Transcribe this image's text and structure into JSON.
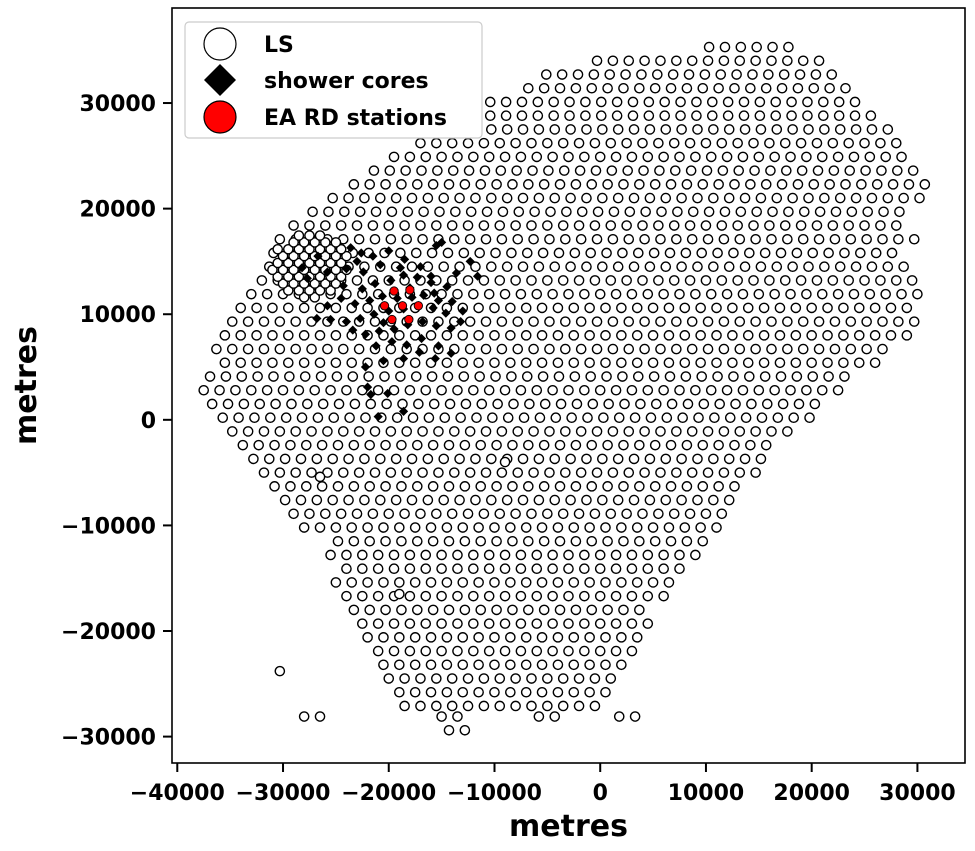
{
  "chart_data": {
    "type": "scatter",
    "title": "",
    "xlabel": "metres",
    "ylabel": "metres",
    "xlim": [
      -40500,
      34500
    ],
    "ylim": [
      -32500,
      39000
    ],
    "xticks": [
      -40000,
      -30000,
      -20000,
      -10000,
      0,
      10000,
      20000,
      30000
    ],
    "xtick_labels": [
      "−40000",
      "−30000",
      "−20000",
      "−10000",
      "0",
      "10000",
      "20000",
      "30000"
    ],
    "yticks": [
      -30000,
      -20000,
      -10000,
      0,
      10000,
      20000,
      30000
    ],
    "ytick_labels": [
      "−30000",
      "−20000",
      "−10000",
      "0",
      "10000",
      "20000",
      "30000"
    ],
    "grid": false,
    "legend": {
      "placement": "top-left",
      "entries": [
        "LS",
        "shower cores",
        "EA RD stations"
      ]
    },
    "layout_grid": {
      "dx": 1500,
      "dy": 1299,
      "note_rows": "hexagonal, odd rows offset by half spacing"
    },
    "series": [
      {
        "name": "LS",
        "marker": "open-circle",
        "color": "#000000",
        "fill": "#ffffff",
        "row_ranges": [
          {
            "y": 35300,
            "x": [
              10300,
              17800
            ]
          },
          {
            "y": 34000,
            "x": [
              -300,
              20800
            ]
          },
          {
            "y": 32700,
            "x": [
              -5100,
              22200
            ]
          },
          {
            "y": 31400,
            "x": [
              -6800,
              23700
            ]
          },
          {
            "y": 30100,
            "x": [
              -10400,
              25200
            ]
          },
          {
            "y": 28800,
            "x": [
              -13400,
              26700
            ]
          },
          {
            "y": 27500,
            "x": [
              -14800,
              28200
            ]
          },
          {
            "y": 26200,
            "x": [
              -17000,
              29000
            ]
          },
          {
            "y": 24900,
            "x": [
              -19500,
              29700
            ]
          },
          {
            "y": 23600,
            "x": [
              -21400,
              30400
            ]
          },
          {
            "y": 22300,
            "x": [
              -23300,
              31200
            ]
          },
          {
            "y": 21000,
            "x": [
              -25300,
              30400
            ]
          },
          {
            "y": 19700,
            "x": [
              -27200,
              29700
            ]
          },
          {
            "y": 18400,
            "x": [
              -29000,
              29000
            ]
          },
          {
            "y": 17100,
            "x": [
              -30300,
              29700
            ]
          },
          {
            "y": 15800,
            "x": [
              -30900,
              29000
            ]
          },
          {
            "y": 14500,
            "x": [
              -31300,
              29700
            ]
          },
          {
            "y": 13200,
            "x": [
              -32000,
              30400
            ]
          },
          {
            "y": 11900,
            "x": [
              -33000,
              31200
            ]
          },
          {
            "y": 10600,
            "x": [
              -34000,
              30400
            ]
          },
          {
            "y": 9300,
            "x": [
              -34800,
              29700
            ]
          },
          {
            "y": 8000,
            "x": [
              -35500,
              29000
            ]
          },
          {
            "y": 6700,
            "x": [
              -36300,
              27500
            ]
          },
          {
            "y": 5400,
            "x": [
              -35500,
              26000
            ]
          },
          {
            "y": 4100,
            "x": [
              -36900,
              24500
            ]
          },
          {
            "y": 2800,
            "x": [
              -37500,
              23000
            ]
          },
          {
            "y": 1500,
            "x": [
              -36700,
              21500
            ]
          },
          {
            "y": 200,
            "x": [
              -35700,
              20000
            ]
          },
          {
            "y": -1100,
            "x": [
              -34800,
              18500
            ]
          },
          {
            "y": -2400,
            "x": [
              -33800,
              17000
            ]
          },
          {
            "y": -3700,
            "x": [
              -32800,
              16000
            ]
          },
          {
            "y": -5000,
            "x": [
              -31800,
              15000
            ]
          },
          {
            "y": -6300,
            "x": [
              -30800,
              14000
            ]
          },
          {
            "y": -7600,
            "x": [
              -29800,
              13000
            ]
          },
          {
            "y": -8900,
            "x": [
              -29000,
              12000
            ]
          },
          {
            "y": -10200,
            "x": [
              -28000,
              11000
            ]
          },
          {
            "y": -11500,
            "x": [
              -24800,
              10000
            ]
          },
          {
            "y": -12800,
            "x": [
              -25500,
              9000
            ]
          },
          {
            "y": -14100,
            "x": [
              -24000,
              8000
            ]
          },
          {
            "y": -15400,
            "x": [
              -25000,
              7000
            ]
          },
          {
            "y": -16700,
            "x": [
              -24000,
              6000
            ]
          },
          {
            "y": -18000,
            "x": [
              -23300,
              5000
            ]
          },
          {
            "y": -19300,
            "x": [
              -22500,
              4500
            ]
          },
          {
            "y": -20600,
            "x": [
              -22000,
              4000
            ]
          },
          {
            "y": -21900,
            "x": [
              -21000,
              3500
            ]
          },
          {
            "y": -23200,
            "x": [
              -20500,
              2800
            ]
          },
          {
            "y": -24500,
            "x": [
              -20000,
              1800
            ]
          },
          {
            "y": -25800,
            "x": [
              -19000,
              1000
            ]
          },
          {
            "y": -27100,
            "x": [
              -18500,
              0
            ]
          }
        ],
        "extra_points": [
          {
            "x": -30300,
            "y": -23800
          },
          {
            "x": -28000,
            "y": -28100
          },
          {
            "x": -26500,
            "y": -28100
          },
          {
            "x": -15000,
            "y": -28100
          },
          {
            "x": -13500,
            "y": -28100
          },
          {
            "x": -5800,
            "y": -28100
          },
          {
            "x": -4300,
            "y": -28100
          },
          {
            "x": 1800,
            "y": -28100
          },
          {
            "x": 3300,
            "y": -28100
          },
          {
            "x": -14300,
            "y": -29400
          },
          {
            "x": -12800,
            "y": -29400
          },
          {
            "x": -26500,
            "y": -5400
          },
          {
            "x": -19000,
            "y": -16500
          },
          {
            "x": -9000,
            "y": -4000
          }
        ],
        "dense_cluster": {
          "center": [
            -27500,
            14800
          ],
          "x_range": [
            -31000,
            -23800
          ],
          "y_range": [
            11600,
            17600
          ],
          "spacing": 500
        }
      },
      {
        "name": "shower cores",
        "marker": "diamond",
        "color": "#000000",
        "points": [
          [
            -23000,
            15000
          ],
          [
            -21500,
            15500
          ],
          [
            -20000,
            16000
          ],
          [
            -18500,
            15200
          ],
          [
            -17000,
            14500
          ],
          [
            -15500,
            16500
          ],
          [
            -15000,
            16800
          ],
          [
            -12300,
            15000
          ],
          [
            -13600,
            13900
          ],
          [
            -11600,
            13600
          ],
          [
            -20800,
            14700
          ],
          [
            -22400,
            14000
          ],
          [
            -24000,
            14300
          ],
          [
            -25800,
            14000
          ],
          [
            -27700,
            13400
          ],
          [
            -28200,
            14400
          ],
          [
            -24300,
            12700
          ],
          [
            -22500,
            12400
          ],
          [
            -21300,
            12900
          ],
          [
            -19800,
            13200
          ],
          [
            -18600,
            13700
          ],
          [
            -17300,
            13500
          ],
          [
            -16000,
            13000
          ],
          [
            -14500,
            12600
          ],
          [
            -15700,
            12000
          ],
          [
            -16700,
            11800
          ],
          [
            -17800,
            11600
          ],
          [
            -19200,
            11500
          ],
          [
            -20600,
            11700
          ],
          [
            -21800,
            11300
          ],
          [
            -23200,
            11000
          ],
          [
            -24500,
            11500
          ],
          [
            -25800,
            10800
          ],
          [
            -26800,
            9600
          ],
          [
            -25500,
            9500
          ],
          [
            -24000,
            9300
          ],
          [
            -22700,
            9600
          ],
          [
            -21400,
            10000
          ],
          [
            -20000,
            10300
          ],
          [
            -18600,
            10500
          ],
          [
            -17200,
            10800
          ],
          [
            -15800,
            10600
          ],
          [
            -14600,
            10100
          ],
          [
            -13200,
            9300
          ],
          [
            -14100,
            8700
          ],
          [
            -15500,
            8900
          ],
          [
            -16800,
            9300
          ],
          [
            -18200,
            9000
          ],
          [
            -19500,
            8600
          ],
          [
            -20900,
            8400
          ],
          [
            -22200,
            8100
          ],
          [
            -23400,
            8500
          ],
          [
            -21200,
            7000
          ],
          [
            -19700,
            7400
          ],
          [
            -18300,
            7100
          ],
          [
            -16900,
            7700
          ],
          [
            -15300,
            7000
          ],
          [
            -14100,
            6300
          ],
          [
            -15600,
            5800
          ],
          [
            -17100,
            6400
          ],
          [
            -18600,
            5800
          ],
          [
            -20500,
            5600
          ],
          [
            -22200,
            5000
          ],
          [
            -21700,
            2400
          ],
          [
            -22000,
            3100
          ],
          [
            -20100,
            2500
          ],
          [
            -21000,
            300
          ],
          [
            -18600,
            800
          ],
          [
            -16000,
            13600
          ],
          [
            -18900,
            14400
          ],
          [
            -22600,
            15800
          ],
          [
            -23600,
            16300
          ],
          [
            -15300,
            11300
          ],
          [
            -14000,
            11200
          ],
          [
            -26700,
            15500
          ],
          [
            -18000,
            12500
          ],
          [
            -13000,
            10300
          ],
          [
            -20500,
            9200
          ]
        ]
      },
      {
        "name": "EA RD stations",
        "marker": "filled-circle",
        "color": "#ff0000",
        "points": [
          [
            -20400,
            10800
          ],
          [
            -18700,
            10800
          ],
          [
            -17200,
            10800
          ],
          [
            -19500,
            12200
          ],
          [
            -18000,
            12300
          ],
          [
            -19700,
            9500
          ],
          [
            -18100,
            9500
          ]
        ]
      }
    ]
  }
}
